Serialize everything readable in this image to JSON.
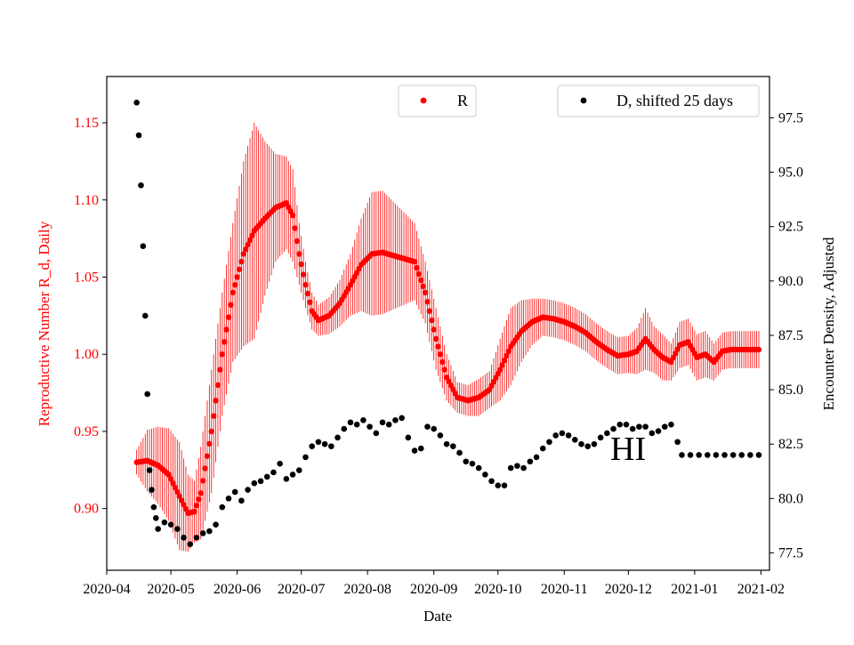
{
  "colors": {
    "r_series": "#ff0000",
    "d_series": "#000000",
    "axes": "#000000",
    "background": "#ffffff"
  },
  "chart_data": {
    "type": "scatter",
    "title": "",
    "xlabel": "Date",
    "ylabel_left": "Reproductive Number R_d, Daily",
    "ylabel_right": "Encounter Density, Adjusted",
    "xlim": [
      "2020-04-01",
      "2021-02-05"
    ],
    "ylim_left": [
      0.86,
      1.18
    ],
    "ylim_right": [
      76.7,
      99.4
    ],
    "x_ticks": [
      "2020-04",
      "2020-05",
      "2020-06",
      "2020-07",
      "2020-08",
      "2020-09",
      "2020-10",
      "2020-11",
      "2020-12",
      "2021-01",
      "2021-02"
    ],
    "y_ticks_left": [
      "0.90",
      "0.95",
      "1.00",
      "1.05",
      "1.10",
      "1.15"
    ],
    "y_ticks_right": [
      "77.5",
      "80.0",
      "82.5",
      "85.0",
      "87.5",
      "90.0",
      "92.5",
      "95.0",
      "97.5"
    ],
    "legend_left": {
      "label": "R",
      "placement": "top-center"
    },
    "legend_right": {
      "label": "D, shifted 25 days",
      "placement": "top-right"
    },
    "annotation": "HI",
    "series": [
      {
        "name": "R",
        "axis": "left",
        "marker": "point",
        "points": [
          [
            "2020-04-15",
            0.93,
            0.008
          ],
          [
            "2020-04-20",
            0.931,
            0.02
          ],
          [
            "2020-04-25",
            0.928,
            0.025
          ],
          [
            "2020-04-30",
            0.922,
            0.03
          ],
          [
            "2020-05-05",
            0.908,
            0.035
          ],
          [
            "2020-05-09",
            0.897,
            0.025
          ],
          [
            "2020-05-12",
            0.898,
            0.02
          ],
          [
            "2020-05-15",
            0.91,
            0.03
          ],
          [
            "2020-05-20",
            0.95,
            0.04
          ],
          [
            "2020-05-25",
            1.0,
            0.04
          ],
          [
            "2020-05-30",
            1.04,
            0.045
          ],
          [
            "2020-06-04",
            1.065,
            0.06
          ],
          [
            "2020-06-09",
            1.08,
            0.07
          ],
          [
            "2020-06-14",
            1.088,
            0.05
          ],
          [
            "2020-06-19",
            1.095,
            0.035
          ],
          [
            "2020-06-24",
            1.098,
            0.03
          ],
          [
            "2020-06-27",
            1.09,
            0.03
          ],
          [
            "2020-06-30",
            1.065,
            0.02
          ],
          [
            "2020-07-03",
            1.045,
            0.015
          ],
          [
            "2020-07-06",
            1.028,
            0.012
          ],
          [
            "2020-07-09",
            1.022,
            0.01
          ],
          [
            "2020-07-14",
            1.025,
            0.012
          ],
          [
            "2020-07-19",
            1.033,
            0.015
          ],
          [
            "2020-07-24",
            1.045,
            0.02
          ],
          [
            "2020-07-29",
            1.058,
            0.03
          ],
          [
            "2020-08-03",
            1.065,
            0.04
          ],
          [
            "2020-08-08",
            1.066,
            0.04
          ],
          [
            "2020-08-13",
            1.064,
            0.035
          ],
          [
            "2020-08-18",
            1.062,
            0.03
          ],
          [
            "2020-08-23",
            1.06,
            0.025
          ],
          [
            "2020-08-28",
            1.04,
            0.02
          ],
          [
            "2020-09-02",
            1.01,
            0.02
          ],
          [
            "2020-09-07",
            0.985,
            0.015
          ],
          [
            "2020-09-12",
            0.972,
            0.01
          ],
          [
            "2020-09-17",
            0.97,
            0.01
          ],
          [
            "2020-09-22",
            0.972,
            0.012
          ],
          [
            "2020-09-27",
            0.977,
            0.012
          ],
          [
            "2020-10-02",
            0.99,
            0.02
          ],
          [
            "2020-10-07",
            1.005,
            0.025
          ],
          [
            "2020-10-12",
            1.015,
            0.02
          ],
          [
            "2020-10-17",
            1.021,
            0.015
          ],
          [
            "2020-10-22",
            1.024,
            0.012
          ],
          [
            "2020-10-27",
            1.023,
            0.012
          ],
          [
            "2020-11-01",
            1.021,
            0.012
          ],
          [
            "2020-11-06",
            1.018,
            0.012
          ],
          [
            "2020-11-11",
            1.014,
            0.012
          ],
          [
            "2020-11-16",
            1.008,
            0.012
          ],
          [
            "2020-11-21",
            1.003,
            0.012
          ],
          [
            "2020-11-26",
            0.999,
            0.012
          ],
          [
            "2020-12-01",
            1.0,
            0.012
          ],
          [
            "2020-12-05",
            1.002,
            0.015
          ],
          [
            "2020-12-09",
            1.01,
            0.02
          ],
          [
            "2020-12-13",
            1.003,
            0.015
          ],
          [
            "2020-12-17",
            0.998,
            0.015
          ],
          [
            "2020-12-21",
            0.995,
            0.012
          ],
          [
            "2020-12-25",
            1.006,
            0.015
          ],
          [
            "2020-12-29",
            1.008,
            0.015
          ],
          [
            "2021-01-02",
            0.998,
            0.015
          ],
          [
            "2021-01-06",
            1.0,
            0.015
          ],
          [
            "2021-01-10",
            0.995,
            0.012
          ],
          [
            "2021-01-14",
            1.002,
            0.012
          ],
          [
            "2021-01-18",
            1.003,
            0.012
          ],
          [
            "2021-01-22",
            1.003,
            0.012
          ],
          [
            "2021-01-26",
            1.003,
            0.012
          ],
          [
            "2021-01-31",
            1.003,
            0.012
          ]
        ]
      },
      {
        "name": "D, shifted 25 days",
        "axis": "right",
        "marker": "point",
        "points": [
          [
            "2020-04-15",
            98.2
          ],
          [
            "2020-04-16",
            96.7
          ],
          [
            "2020-04-17",
            94.4
          ],
          [
            "2020-04-18",
            91.6
          ],
          [
            "2020-04-19",
            88.4
          ],
          [
            "2020-04-20",
            84.8
          ],
          [
            "2020-04-21",
            81.3
          ],
          [
            "2020-04-22",
            80.4
          ],
          [
            "2020-04-23",
            79.6
          ],
          [
            "2020-04-24",
            79.1
          ],
          [
            "2020-04-25",
            78.6
          ],
          [
            "2020-04-28",
            78.9
          ],
          [
            "2020-05-01",
            78.8
          ],
          [
            "2020-05-04",
            78.6
          ],
          [
            "2020-05-07",
            78.2
          ],
          [
            "2020-05-10",
            77.9
          ],
          [
            "2020-05-13",
            78.2
          ],
          [
            "2020-05-16",
            78.4
          ],
          [
            "2020-05-19",
            78.5
          ],
          [
            "2020-05-22",
            78.8
          ],
          [
            "2020-05-25",
            79.6
          ],
          [
            "2020-05-28",
            80.0
          ],
          [
            "2020-05-31",
            80.3
          ],
          [
            "2020-06-03",
            79.9
          ],
          [
            "2020-06-06",
            80.4
          ],
          [
            "2020-06-09",
            80.7
          ],
          [
            "2020-06-12",
            80.8
          ],
          [
            "2020-06-15",
            81.0
          ],
          [
            "2020-06-18",
            81.2
          ],
          [
            "2020-06-21",
            81.6
          ],
          [
            "2020-06-24",
            80.9
          ],
          [
            "2020-06-27",
            81.1
          ],
          [
            "2020-06-30",
            81.3
          ],
          [
            "2020-07-03",
            81.9
          ],
          [
            "2020-07-06",
            82.4
          ],
          [
            "2020-07-09",
            82.6
          ],
          [
            "2020-07-12",
            82.5
          ],
          [
            "2020-07-15",
            82.4
          ],
          [
            "2020-07-18",
            82.8
          ],
          [
            "2020-07-21",
            83.2
          ],
          [
            "2020-07-24",
            83.5
          ],
          [
            "2020-07-27",
            83.4
          ],
          [
            "2020-07-30",
            83.6
          ],
          [
            "2020-08-02",
            83.3
          ],
          [
            "2020-08-05",
            83.0
          ],
          [
            "2020-08-08",
            83.5
          ],
          [
            "2020-08-11",
            83.4
          ],
          [
            "2020-08-14",
            83.6
          ],
          [
            "2020-08-17",
            83.7
          ],
          [
            "2020-08-20",
            82.8
          ],
          [
            "2020-08-23",
            82.2
          ],
          [
            "2020-08-26",
            82.3
          ],
          [
            "2020-08-29",
            83.3
          ],
          [
            "2020-09-01",
            83.2
          ],
          [
            "2020-09-04",
            82.9
          ],
          [
            "2020-09-07",
            82.5
          ],
          [
            "2020-09-10",
            82.4
          ],
          [
            "2020-09-13",
            82.1
          ],
          [
            "2020-09-16",
            81.7
          ],
          [
            "2020-09-19",
            81.6
          ],
          [
            "2020-09-22",
            81.4
          ],
          [
            "2020-09-25",
            81.1
          ],
          [
            "2020-09-28",
            80.8
          ],
          [
            "2020-10-01",
            80.6
          ],
          [
            "2020-10-04",
            80.6
          ],
          [
            "2020-10-07",
            81.4
          ],
          [
            "2020-10-10",
            81.5
          ],
          [
            "2020-10-13",
            81.4
          ],
          [
            "2020-10-16",
            81.7
          ],
          [
            "2020-10-19",
            81.9
          ],
          [
            "2020-10-22",
            82.3
          ],
          [
            "2020-10-25",
            82.6
          ],
          [
            "2020-10-28",
            82.9
          ],
          [
            "2020-10-31",
            83.0
          ],
          [
            "2020-11-03",
            82.9
          ],
          [
            "2020-11-06",
            82.7
          ],
          [
            "2020-11-09",
            82.5
          ],
          [
            "2020-11-12",
            82.4
          ],
          [
            "2020-11-15",
            82.5
          ],
          [
            "2020-11-18",
            82.8
          ],
          [
            "2020-11-21",
            83.0
          ],
          [
            "2020-11-24",
            83.2
          ],
          [
            "2020-11-27",
            83.4
          ],
          [
            "2020-11-30",
            83.4
          ],
          [
            "2020-12-03",
            83.2
          ],
          [
            "2020-12-06",
            83.3
          ],
          [
            "2020-12-09",
            83.3
          ],
          [
            "2020-12-12",
            83.0
          ],
          [
            "2020-12-15",
            83.1
          ],
          [
            "2020-12-18",
            83.3
          ],
          [
            "2020-12-21",
            83.4
          ],
          [
            "2020-12-24",
            82.6
          ],
          [
            "2020-12-26",
            82.0
          ],
          [
            "2020-12-30",
            82.0
          ],
          [
            "2021-01-03",
            82.0
          ],
          [
            "2021-01-07",
            82.0
          ],
          [
            "2021-01-11",
            82.0
          ],
          [
            "2021-01-15",
            82.0
          ],
          [
            "2021-01-19",
            82.0
          ],
          [
            "2021-01-23",
            82.0
          ],
          [
            "2021-01-27",
            82.0
          ],
          [
            "2021-01-31",
            82.0
          ]
        ]
      }
    ]
  }
}
